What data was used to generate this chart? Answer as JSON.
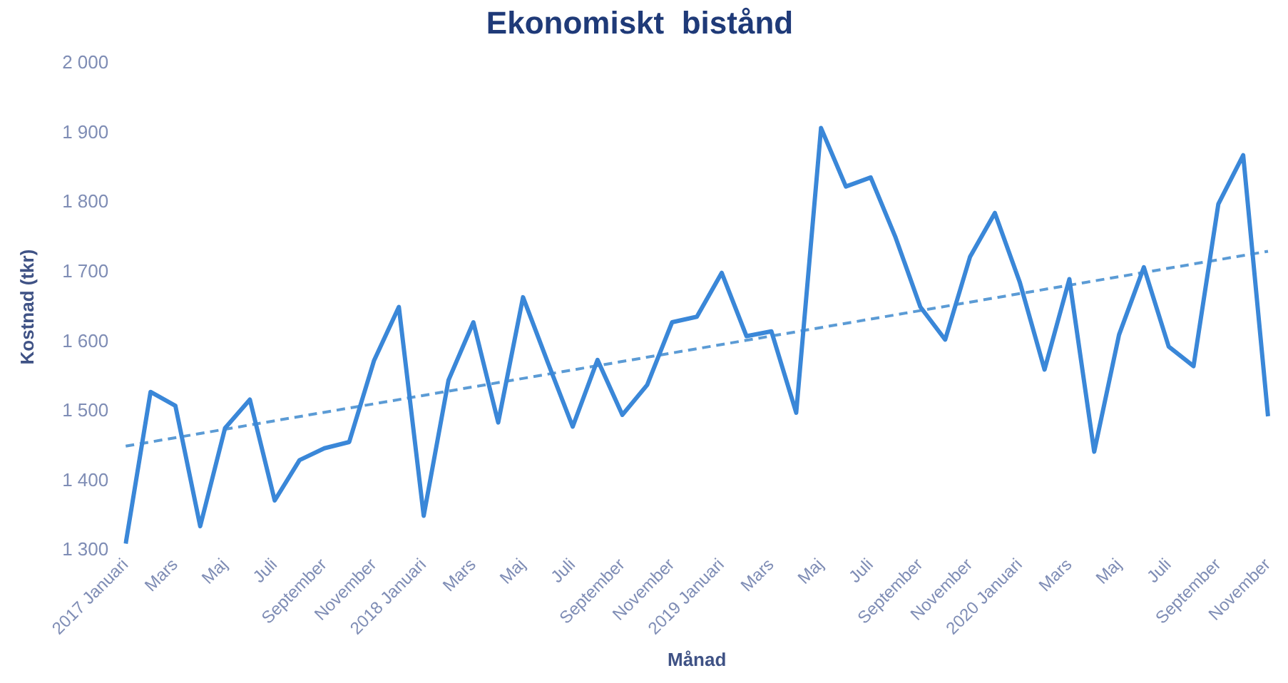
{
  "chart_data": {
    "type": "line",
    "title": "Ekonomiskt  bistånd",
    "xlabel": "Månad",
    "ylabel": "Kostnad (tkr)",
    "categories": [
      "2017 Januari",
      null,
      "Mars",
      null,
      "Maj",
      null,
      "Juli",
      null,
      "September",
      null,
      "November",
      null,
      "2018 Januari",
      null,
      "Mars",
      null,
      "Maj",
      null,
      "Juli",
      null,
      "September",
      null,
      "November",
      null,
      "2019 Januari",
      null,
      "Mars",
      null,
      "Maj",
      null,
      "Juli",
      null,
      "September",
      null,
      "November",
      null,
      "2020 Januari",
      null,
      "Mars",
      null,
      "Maj",
      null,
      "Juli",
      null,
      "September",
      null,
      "November"
    ],
    "series": [
      {
        "color": "#3a87d8",
        "line_style": "solid",
        "values": [
          1310,
          1528,
          1508,
          1335,
          1476,
          1517,
          1372,
          1430,
          1447,
          1456,
          1573,
          1650,
          1350,
          1545,
          1628,
          1484,
          1664,
          1570,
          1478,
          1574,
          1495,
          1538,
          1628,
          1636,
          1699,
          1608,
          1615,
          1498,
          1907,
          1823,
          1836,
          1750,
          1650,
          1603,
          1722,
          1785,
          1686,
          1560,
          1690,
          1442,
          1610,
          1707,
          1593,
          1565,
          1798,
          1868,
          1493
        ]
      },
      {
        "color": "#5b9bd5",
        "line_style": "dashed",
        "values": [
          1450,
          null,
          null,
          null,
          null,
          null,
          null,
          null,
          null,
          null,
          null,
          null,
          null,
          null,
          null,
          null,
          null,
          null,
          null,
          null,
          null,
          null,
          null,
          null,
          null,
          null,
          null,
          null,
          null,
          null,
          null,
          null,
          null,
          null,
          null,
          null,
          null,
          null,
          null,
          null,
          null,
          null,
          null,
          null,
          null,
          null,
          1730
        ]
      }
    ],
    "ylim": [
      1300,
      2000
    ],
    "yticks": [
      {
        "value": 1300,
        "label": "1 300"
      },
      {
        "value": 1400,
        "label": "1 400"
      },
      {
        "value": 1500,
        "label": "1 500"
      },
      {
        "value": 1600,
        "label": "1 600"
      },
      {
        "value": 1700,
        "label": "1 700"
      },
      {
        "value": 1800,
        "label": "1 800"
      },
      {
        "value": 1900,
        "label": "1 900"
      },
      {
        "value": 2000,
        "label": "2 000"
      }
    ],
    "grid": false,
    "legend": false,
    "marker": "none"
  }
}
